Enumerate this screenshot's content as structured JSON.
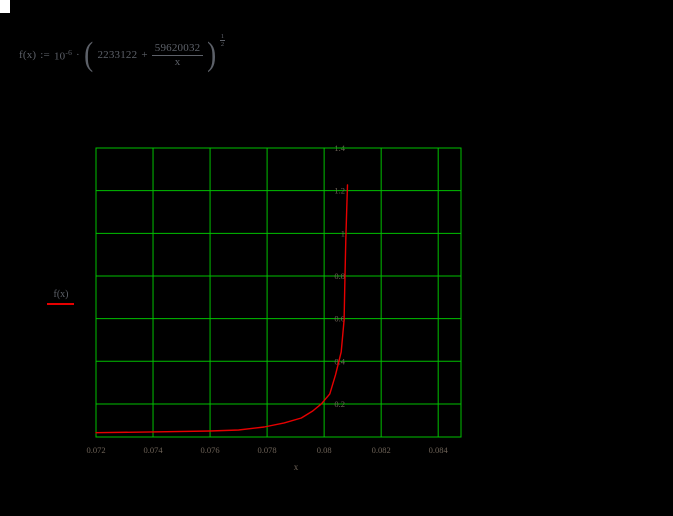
{
  "app": {
    "background_color": "#000000",
    "cursor_block_color": "#ffffff"
  },
  "formula": {
    "lhs": "f(x)",
    "assign": ":=",
    "base": "10",
    "base_exponent": "-6",
    "times": "·",
    "open_paren": "(",
    "inner_first_term": "2233122",
    "plus": "+",
    "frac_numerator": "59620032",
    "frac_denominator": "x",
    "close_paren": ")",
    "outer_exponent_numerator": "1",
    "outer_exponent_denominator": "2"
  },
  "chart_data": {
    "type": "line",
    "title": "",
    "xlabel": "x",
    "ylabel": "f(x)",
    "xlim": [
      0.072,
      0.0848
    ],
    "ylim": [
      0.045,
      1.4
    ],
    "grid": true,
    "grid_color": "#00c000",
    "tick_label_color": "#6d6257",
    "x_ticks": {
      "values": [
        0.072,
        0.074,
        0.076,
        0.078,
        0.08,
        0.082,
        0.084
      ],
      "labels": [
        "0.072",
        "0.074",
        "0.076",
        "0.078",
        "0.08",
        "0.082",
        "0.084"
      ]
    },
    "y_ticks": {
      "values": [
        1.4,
        1.2,
        1.0,
        0.8,
        0.6,
        0.4,
        0.2
      ],
      "labels": [
        "1.4",
        "1.2",
        "1",
        "0.8",
        "0.6",
        "0.4",
        "0.2"
      ]
    },
    "series": [
      {
        "name": "f(x)",
        "color": "#e60000",
        "points": [
          [
            0.072,
            0.065
          ],
          [
            0.074,
            0.069
          ],
          [
            0.076,
            0.073
          ],
          [
            0.077,
            0.078
          ],
          [
            0.0779,
            0.092
          ],
          [
            0.0786,
            0.111
          ],
          [
            0.0792,
            0.134
          ],
          [
            0.0796,
            0.167
          ],
          [
            0.0799,
            0.2
          ],
          [
            0.0802,
            0.247
          ],
          [
            0.0804,
            0.336
          ],
          [
            0.0806,
            0.444
          ],
          [
            0.0807,
            0.594
          ],
          [
            0.08073,
            0.781
          ],
          [
            0.08076,
            0.969
          ],
          [
            0.08079,
            1.109
          ],
          [
            0.08082,
            1.227
          ]
        ]
      }
    ],
    "legend_position": "left-of-plot",
    "vertical_asymptote_x": 0.0808
  }
}
